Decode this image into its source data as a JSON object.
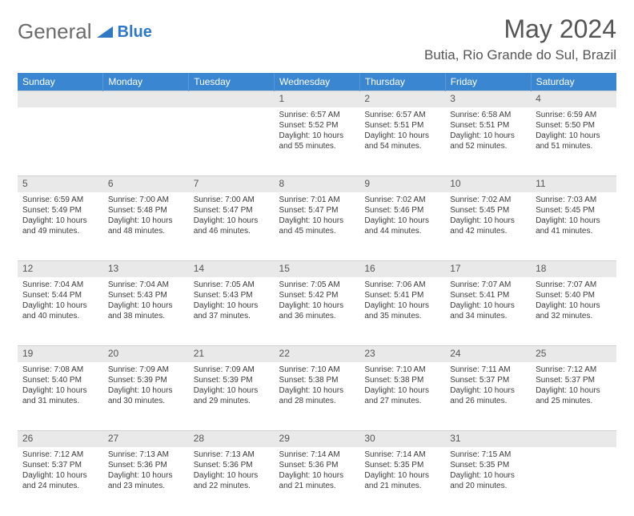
{
  "logo": {
    "text1": "General",
    "text2": "Blue"
  },
  "title": "May 2024",
  "location": "Butia, Rio Grande do Sul, Brazil",
  "colors": {
    "header_bg": "#3a86d0",
    "header_text": "#ffffff",
    "daynum_bg": "#e9e9e9",
    "text": "#3a3a3a",
    "title_color": "#555",
    "logo_gray": "#6b6b6b",
    "logo_blue": "#2f78c4"
  },
  "weekdays": [
    "Sunday",
    "Monday",
    "Tuesday",
    "Wednesday",
    "Thursday",
    "Friday",
    "Saturday"
  ],
  "weeks": [
    {
      "nums": [
        "",
        "",
        "",
        "1",
        "2",
        "3",
        "4"
      ],
      "cells": [
        {
          "sunrise": "",
          "sunset": "",
          "daylight1": "",
          "daylight2": ""
        },
        {
          "sunrise": "",
          "sunset": "",
          "daylight1": "",
          "daylight2": ""
        },
        {
          "sunrise": "",
          "sunset": "",
          "daylight1": "",
          "daylight2": ""
        },
        {
          "sunrise": "Sunrise: 6:57 AM",
          "sunset": "Sunset: 5:52 PM",
          "daylight1": "Daylight: 10 hours",
          "daylight2": "and 55 minutes."
        },
        {
          "sunrise": "Sunrise: 6:57 AM",
          "sunset": "Sunset: 5:51 PM",
          "daylight1": "Daylight: 10 hours",
          "daylight2": "and 54 minutes."
        },
        {
          "sunrise": "Sunrise: 6:58 AM",
          "sunset": "Sunset: 5:51 PM",
          "daylight1": "Daylight: 10 hours",
          "daylight2": "and 52 minutes."
        },
        {
          "sunrise": "Sunrise: 6:59 AM",
          "sunset": "Sunset: 5:50 PM",
          "daylight1": "Daylight: 10 hours",
          "daylight2": "and 51 minutes."
        }
      ]
    },
    {
      "nums": [
        "5",
        "6",
        "7",
        "8",
        "9",
        "10",
        "11"
      ],
      "cells": [
        {
          "sunrise": "Sunrise: 6:59 AM",
          "sunset": "Sunset: 5:49 PM",
          "daylight1": "Daylight: 10 hours",
          "daylight2": "and 49 minutes."
        },
        {
          "sunrise": "Sunrise: 7:00 AM",
          "sunset": "Sunset: 5:48 PM",
          "daylight1": "Daylight: 10 hours",
          "daylight2": "and 48 minutes."
        },
        {
          "sunrise": "Sunrise: 7:00 AM",
          "sunset": "Sunset: 5:47 PM",
          "daylight1": "Daylight: 10 hours",
          "daylight2": "and 46 minutes."
        },
        {
          "sunrise": "Sunrise: 7:01 AM",
          "sunset": "Sunset: 5:47 PM",
          "daylight1": "Daylight: 10 hours",
          "daylight2": "and 45 minutes."
        },
        {
          "sunrise": "Sunrise: 7:02 AM",
          "sunset": "Sunset: 5:46 PM",
          "daylight1": "Daylight: 10 hours",
          "daylight2": "and 44 minutes."
        },
        {
          "sunrise": "Sunrise: 7:02 AM",
          "sunset": "Sunset: 5:45 PM",
          "daylight1": "Daylight: 10 hours",
          "daylight2": "and 42 minutes."
        },
        {
          "sunrise": "Sunrise: 7:03 AM",
          "sunset": "Sunset: 5:45 PM",
          "daylight1": "Daylight: 10 hours",
          "daylight2": "and 41 minutes."
        }
      ]
    },
    {
      "nums": [
        "12",
        "13",
        "14",
        "15",
        "16",
        "17",
        "18"
      ],
      "cells": [
        {
          "sunrise": "Sunrise: 7:04 AM",
          "sunset": "Sunset: 5:44 PM",
          "daylight1": "Daylight: 10 hours",
          "daylight2": "and 40 minutes."
        },
        {
          "sunrise": "Sunrise: 7:04 AM",
          "sunset": "Sunset: 5:43 PM",
          "daylight1": "Daylight: 10 hours",
          "daylight2": "and 38 minutes."
        },
        {
          "sunrise": "Sunrise: 7:05 AM",
          "sunset": "Sunset: 5:43 PM",
          "daylight1": "Daylight: 10 hours",
          "daylight2": "and 37 minutes."
        },
        {
          "sunrise": "Sunrise: 7:05 AM",
          "sunset": "Sunset: 5:42 PM",
          "daylight1": "Daylight: 10 hours",
          "daylight2": "and 36 minutes."
        },
        {
          "sunrise": "Sunrise: 7:06 AM",
          "sunset": "Sunset: 5:41 PM",
          "daylight1": "Daylight: 10 hours",
          "daylight2": "and 35 minutes."
        },
        {
          "sunrise": "Sunrise: 7:07 AM",
          "sunset": "Sunset: 5:41 PM",
          "daylight1": "Daylight: 10 hours",
          "daylight2": "and 34 minutes."
        },
        {
          "sunrise": "Sunrise: 7:07 AM",
          "sunset": "Sunset: 5:40 PM",
          "daylight1": "Daylight: 10 hours",
          "daylight2": "and 32 minutes."
        }
      ]
    },
    {
      "nums": [
        "19",
        "20",
        "21",
        "22",
        "23",
        "24",
        "25"
      ],
      "cells": [
        {
          "sunrise": "Sunrise: 7:08 AM",
          "sunset": "Sunset: 5:40 PM",
          "daylight1": "Daylight: 10 hours",
          "daylight2": "and 31 minutes."
        },
        {
          "sunrise": "Sunrise: 7:09 AM",
          "sunset": "Sunset: 5:39 PM",
          "daylight1": "Daylight: 10 hours",
          "daylight2": "and 30 minutes."
        },
        {
          "sunrise": "Sunrise: 7:09 AM",
          "sunset": "Sunset: 5:39 PM",
          "daylight1": "Daylight: 10 hours",
          "daylight2": "and 29 minutes."
        },
        {
          "sunrise": "Sunrise: 7:10 AM",
          "sunset": "Sunset: 5:38 PM",
          "daylight1": "Daylight: 10 hours",
          "daylight2": "and 28 minutes."
        },
        {
          "sunrise": "Sunrise: 7:10 AM",
          "sunset": "Sunset: 5:38 PM",
          "daylight1": "Daylight: 10 hours",
          "daylight2": "and 27 minutes."
        },
        {
          "sunrise": "Sunrise: 7:11 AM",
          "sunset": "Sunset: 5:37 PM",
          "daylight1": "Daylight: 10 hours",
          "daylight2": "and 26 minutes."
        },
        {
          "sunrise": "Sunrise: 7:12 AM",
          "sunset": "Sunset: 5:37 PM",
          "daylight1": "Daylight: 10 hours",
          "daylight2": "and 25 minutes."
        }
      ]
    },
    {
      "nums": [
        "26",
        "27",
        "28",
        "29",
        "30",
        "31",
        ""
      ],
      "cells": [
        {
          "sunrise": "Sunrise: 7:12 AM",
          "sunset": "Sunset: 5:37 PM",
          "daylight1": "Daylight: 10 hours",
          "daylight2": "and 24 minutes."
        },
        {
          "sunrise": "Sunrise: 7:13 AM",
          "sunset": "Sunset: 5:36 PM",
          "daylight1": "Daylight: 10 hours",
          "daylight2": "and 23 minutes."
        },
        {
          "sunrise": "Sunrise: 7:13 AM",
          "sunset": "Sunset: 5:36 PM",
          "daylight1": "Daylight: 10 hours",
          "daylight2": "and 22 minutes."
        },
        {
          "sunrise": "Sunrise: 7:14 AM",
          "sunset": "Sunset: 5:36 PM",
          "daylight1": "Daylight: 10 hours",
          "daylight2": "and 21 minutes."
        },
        {
          "sunrise": "Sunrise: 7:14 AM",
          "sunset": "Sunset: 5:35 PM",
          "daylight1": "Daylight: 10 hours",
          "daylight2": "and 21 minutes."
        },
        {
          "sunrise": "Sunrise: 7:15 AM",
          "sunset": "Sunset: 5:35 PM",
          "daylight1": "Daylight: 10 hours",
          "daylight2": "and 20 minutes."
        },
        {
          "sunrise": "",
          "sunset": "",
          "daylight1": "",
          "daylight2": ""
        }
      ]
    }
  ]
}
